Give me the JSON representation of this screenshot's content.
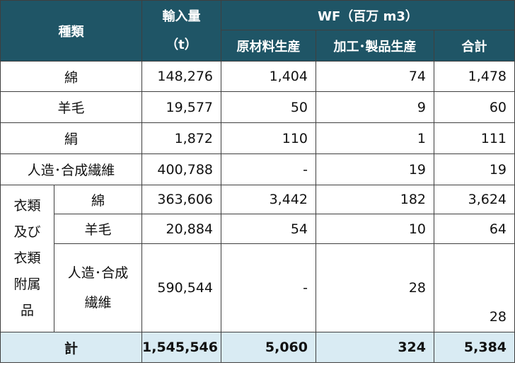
{
  "header": {
    "kind": "種類",
    "import": "輸入量",
    "import_unit": "（t）",
    "wf": "WF（百万 m3）",
    "raw": "原材料生産",
    "proc": "加工･製品生産",
    "total": "合計"
  },
  "rows": [
    {
      "name": "綿",
      "import": "148,276",
      "raw": "1,404",
      "proc": "74",
      "total": "1,478"
    },
    {
      "name": "羊毛",
      "import": "19,577",
      "raw": "50",
      "proc": "9",
      "total": "60"
    },
    {
      "name": "絹",
      "import": "1,872",
      "raw": "110",
      "proc": "1",
      "total": "111"
    },
    {
      "name": "人造･合成繊維",
      "import": "400,788",
      "raw": "-",
      "proc": "19",
      "total": "19"
    }
  ],
  "group": {
    "label": [
      "衣類",
      "及び",
      "衣類",
      "附属",
      "品"
    ],
    "rows": [
      {
        "name": "綿",
        "import": "363,606",
        "raw": "3,442",
        "proc": "182",
        "total": "3,624"
      },
      {
        "name": "羊毛",
        "import": "20,884",
        "raw": "54",
        "proc": "10",
        "total": "64"
      },
      {
        "name1": "人造･合成",
        "name2": "繊維",
        "import": "590,544",
        "raw": "-",
        "proc": "28",
        "total": "28"
      }
    ]
  },
  "footer": {
    "label": "計",
    "import": "1,545,546",
    "raw": "5,060",
    "proc": "324",
    "total": "5,384"
  }
}
